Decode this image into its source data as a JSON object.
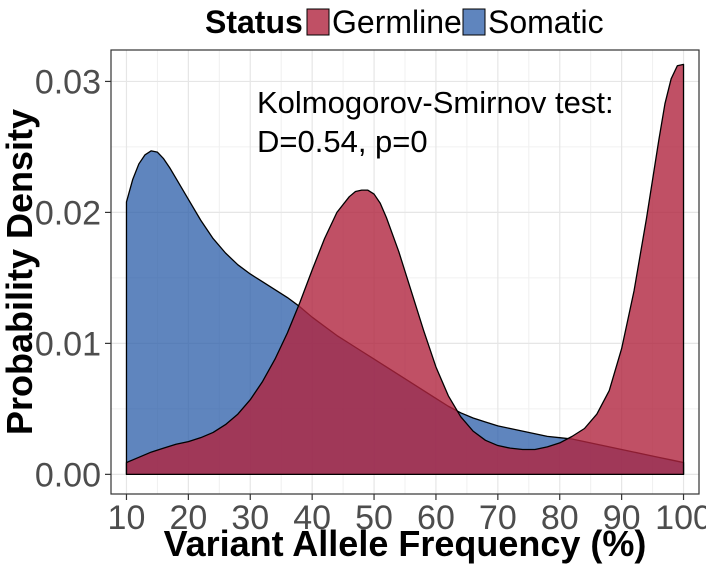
{
  "chart_data": {
    "type": "area",
    "xlabel": "Variant Allele Frequency (%)",
    "ylabel": "Probability Density",
    "xlim": [
      7.5,
      102.5
    ],
    "ylim": [
      -0.0015,
      0.0324
    ],
    "x_ticks": [
      10,
      20,
      30,
      40,
      50,
      60,
      70,
      80,
      90,
      100
    ],
    "x_tick_labels": [
      "10",
      "20",
      "30",
      "40",
      "50",
      "60",
      "70",
      "80",
      "90",
      "100"
    ],
    "y_ticks": [
      0,
      0.01,
      0.02,
      0.03
    ],
    "y_tick_labels": [
      "0.00",
      "0.01",
      "0.02",
      "0.03"
    ],
    "grid": true,
    "legend": {
      "title": "Status",
      "position": "top",
      "entries": [
        {
          "name": "Germline",
          "color": "#b0243f"
        },
        {
          "name": "Somatic",
          "color": "#2a5ca8"
        }
      ]
    },
    "annotation": {
      "lines": [
        "Kolmogorov-Smirnov test:",
        "D=0.54, p=0"
      ]
    },
    "series": [
      {
        "name": "Somatic",
        "color": "#2a5ca8",
        "opacity": 0.75,
        "x": [
          10,
          11,
          12,
          13,
          14,
          15,
          16,
          17,
          18,
          20,
          22,
          24,
          26,
          28,
          30,
          32,
          34,
          36,
          38,
          40,
          42,
          44,
          46,
          48,
          50,
          52,
          54,
          56,
          58,
          60,
          62,
          64,
          66,
          68,
          70,
          72,
          74,
          76,
          78,
          80,
          82,
          84,
          86,
          88,
          90,
          92,
          94,
          96,
          98,
          100
        ],
        "y": [
          0.0208,
          0.0225,
          0.0237,
          0.0244,
          0.0247,
          0.0246,
          0.0241,
          0.0234,
          0.0226,
          0.021,
          0.0194,
          0.018,
          0.0169,
          0.016,
          0.0153,
          0.0147,
          0.0141,
          0.0135,
          0.0128,
          0.012,
          0.0113,
          0.0106,
          0.01,
          0.0094,
          0.0088,
          0.0082,
          0.0076,
          0.007,
          0.0064,
          0.0058,
          0.0052,
          0.0047,
          0.0043,
          0.004,
          0.0037,
          0.0035,
          0.0033,
          0.0031,
          0.0029,
          0.0028,
          0.0027,
          0.0025,
          0.0023,
          0.0021,
          0.0019,
          0.0017,
          0.0015,
          0.0013,
          0.0011,
          0.0009
        ]
      },
      {
        "name": "Germline",
        "color": "#b0243f",
        "opacity": 0.8,
        "x": [
          10,
          12,
          14,
          16,
          18,
          20,
          22,
          24,
          26,
          28,
          30,
          32,
          34,
          36,
          38,
          40,
          42,
          44,
          46,
          47,
          48,
          49,
          50,
          51,
          52,
          54,
          56,
          58,
          60,
          62,
          64,
          66,
          68,
          70,
          72,
          74,
          76,
          78,
          80,
          82,
          84,
          86,
          88,
          90,
          92,
          94,
          96,
          97,
          98,
          99,
          100
        ],
        "y": [
          0.0009,
          0.0013,
          0.0017,
          0.002,
          0.0023,
          0.0025,
          0.0028,
          0.0032,
          0.0038,
          0.0046,
          0.0057,
          0.0071,
          0.0088,
          0.0108,
          0.0131,
          0.0156,
          0.018,
          0.02,
          0.0212,
          0.0216,
          0.0217,
          0.0217,
          0.0214,
          0.0207,
          0.0196,
          0.017,
          0.014,
          0.011,
          0.0082,
          0.006,
          0.0044,
          0.0033,
          0.0026,
          0.0022,
          0.002,
          0.0019,
          0.0019,
          0.0021,
          0.0024,
          0.0029,
          0.0035,
          0.0046,
          0.0064,
          0.0096,
          0.014,
          0.0195,
          0.0255,
          0.0283,
          0.0302,
          0.0312,
          0.0313
        ]
      }
    ]
  }
}
